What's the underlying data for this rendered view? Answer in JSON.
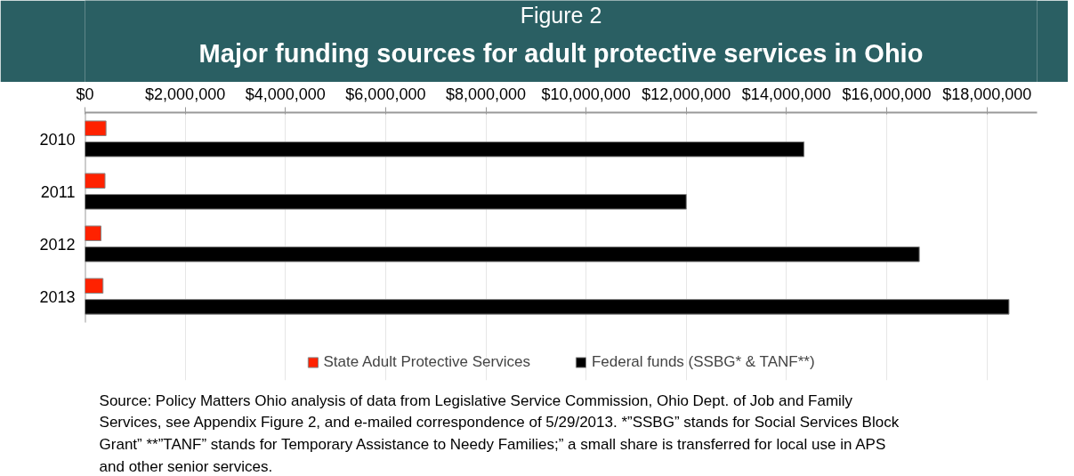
{
  "chart_data": {
    "type": "bar",
    "orientation": "horizontal",
    "title": "Figure 2",
    "subtitle": "Major funding sources for adult protective services in Ohio",
    "categories": [
      "2010",
      "2011",
      "2012",
      "2013"
    ],
    "series": [
      {
        "name": "State Adult Protective Services",
        "color": "#ff2200",
        "values": [
          420000,
          400000,
          320000,
          360000
        ]
      },
      {
        "name": "Federal funds (SSBG* & TANF**)",
        "color": "#000000",
        "values": [
          14350000,
          12000000,
          16650000,
          18440000
        ]
      }
    ],
    "xlim": [
      0,
      19000000
    ],
    "xticks": [
      {
        "value": 0,
        "label": "$0"
      },
      {
        "value": 2000000,
        "label": "$2,000,000"
      },
      {
        "value": 4000000,
        "label": "$4,000,000"
      },
      {
        "value": 6000000,
        "label": "$6,000,000"
      },
      {
        "value": 8000000,
        "label": "$8,000,000"
      },
      {
        "value": 10000000,
        "label": "$10,000,000"
      },
      {
        "value": 12000000,
        "label": "$12,000,000"
      },
      {
        "value": 14000000,
        "label": "$14,000,000"
      },
      {
        "value": 16000000,
        "label": "$16,000,000"
      },
      {
        "value": 18000000,
        "label": "$18,000,000"
      }
    ],
    "grid": "x",
    "legend": "bottom",
    "annotations": [
      "Source: Policy Matters Ohio analysis of data from Legislative Service Commission, Ohio Dept. of Job and Family Services, see Appendix Figure 2, and e-mailed correspondence of 5/29/2013. *”SSBG” stands for Social Services Block Grant” **”TANF” stands for Temporary Assistance to Needy Families;” a small share is transferred for local use in APS and other senior services."
    ]
  }
}
